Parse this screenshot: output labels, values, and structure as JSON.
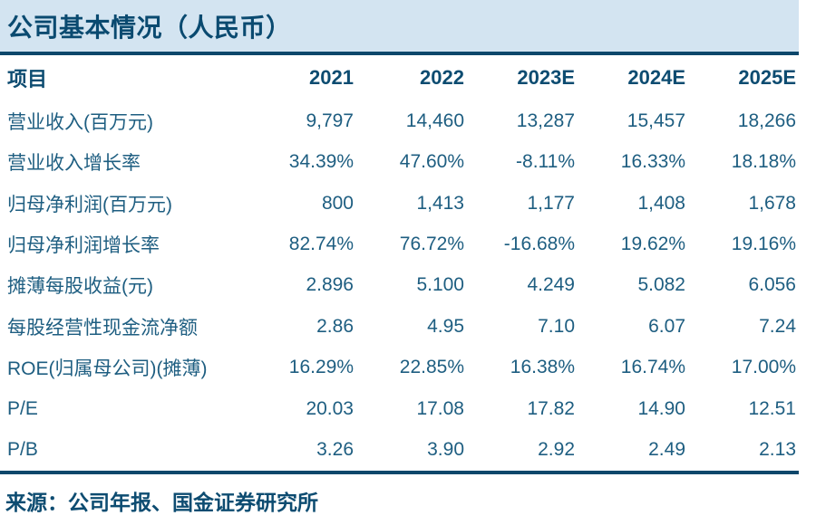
{
  "title": "公司基本情况（人民币）",
  "source_note": "来源：公司年报、国金证券研究所",
  "colors": {
    "band_background": "#d3e4f1",
    "rule": "#0d476b",
    "title_text": "#0a4a70",
    "header_text": "#0d4c71",
    "body_text": "#1e5e81"
  },
  "chart_data": {
    "type": "table",
    "columns": [
      "项目",
      "2021",
      "2022",
      "2023E",
      "2024E",
      "2025E"
    ],
    "rows": [
      {
        "label": "营业收入(百万元)",
        "values": [
          "9,797",
          "14,460",
          "13,287",
          "15,457",
          "18,266"
        ]
      },
      {
        "label": "营业收入增长率",
        "values": [
          "34.39%",
          "47.60%",
          "-8.11%",
          "16.33%",
          "18.18%"
        ]
      },
      {
        "label": "归母净利润(百万元)",
        "values": [
          "800",
          "1,413",
          "1,177",
          "1,408",
          "1,678"
        ]
      },
      {
        "label": "归母净利润增长率",
        "values": [
          "82.74%",
          "76.72%",
          "-16.68%",
          "19.62%",
          "19.16%"
        ]
      },
      {
        "label": "摊薄每股收益(元)",
        "values": [
          "2.896",
          "5.100",
          "4.249",
          "5.082",
          "6.056"
        ]
      },
      {
        "label": "每股经营性现金流净额",
        "values": [
          "2.86",
          "4.95",
          "7.10",
          "6.07",
          "7.24"
        ]
      },
      {
        "label": "ROE(归属母公司)(摊薄)",
        "values": [
          "16.29%",
          "22.85%",
          "16.38%",
          "16.74%",
          "17.00%"
        ]
      },
      {
        "label": "P/E",
        "values": [
          "20.03",
          "17.08",
          "17.82",
          "14.90",
          "12.51"
        ]
      },
      {
        "label": "P/B",
        "values": [
          "3.26",
          "3.90",
          "2.92",
          "2.49",
          "2.13"
        ]
      }
    ]
  }
}
